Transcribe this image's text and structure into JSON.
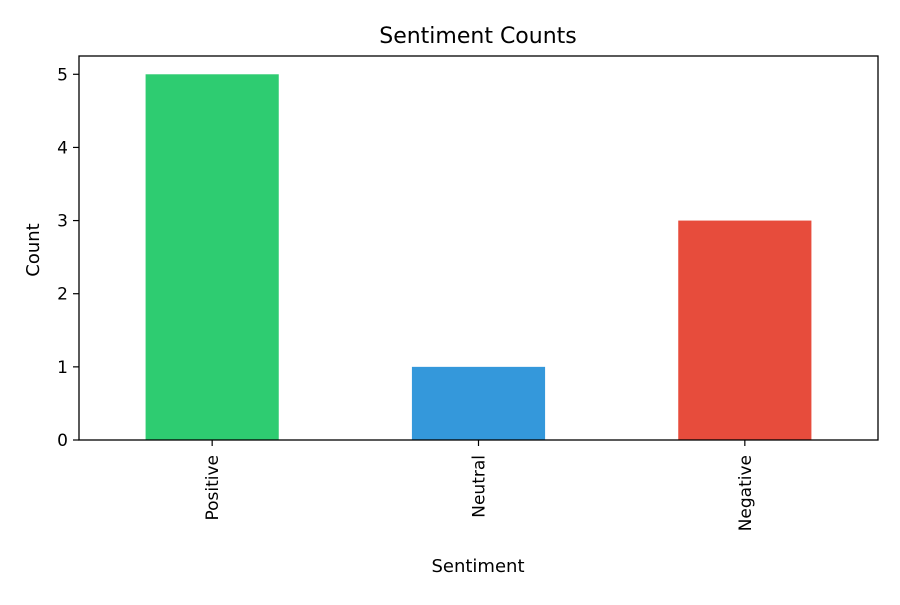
{
  "chart_data": {
    "type": "bar",
    "title": "Sentiment Counts",
    "xlabel": "Sentiment",
    "ylabel": "Count",
    "categories": [
      "Positive",
      "Neutral",
      "Negative"
    ],
    "values": [
      5,
      1,
      3
    ],
    "colors": [
      "#2ecc71",
      "#3498db",
      "#e74c3c"
    ],
    "ylim": [
      0,
      5.25
    ],
    "yticks": [
      0,
      1,
      2,
      3,
      4,
      5
    ],
    "grid": false,
    "legend": "none"
  }
}
